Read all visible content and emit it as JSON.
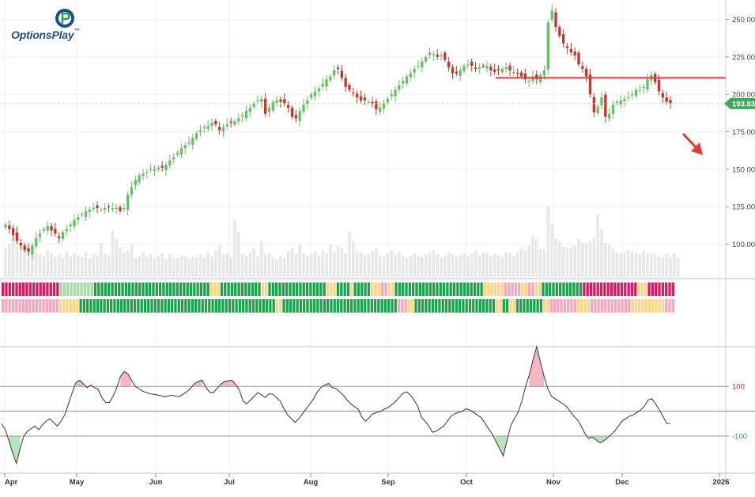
{
  "brand": {
    "name": "OptionsPlay",
    "tm": "™",
    "colors": {
      "blue": "#1f4e8c",
      "green": "#2e9e4f"
    }
  },
  "current_price_label": "193.83",
  "colors": {
    "up": "#6abf69",
    "down": "#c0392b",
    "volume": "#e8e8e8",
    "resistance": "#e53935",
    "arrow": "#e53935",
    "cci_line": "#444444",
    "cci_pos_fill": "#f2b8c6",
    "cci_neg_fill": "#b9e2bf",
    "band_green": "#1aa34a",
    "band_red": "#d81b60",
    "band_pink": "#f4a6be",
    "band_yellow": "#ffd580",
    "band_lightgreen": "#a8d8a8",
    "price_dash": "#c9d6a3",
    "badge": "#3daa5a"
  },
  "chart_data": [
    {
      "type": "candlestick",
      "title": "",
      "y_ticks": [
        250.0,
        225.0,
        200.0,
        175.0,
        150.0,
        125.0,
        100.0
      ],
      "y_tick_labels": [
        "250.00",
        "225.00",
        "200.00",
        "175.00",
        "150.00",
        "125.00",
        "100.00"
      ],
      "ylim": [
        78,
        263
      ],
      "x_labels": [
        "Apr",
        "May",
        "Jun",
        "Jul",
        "Aug",
        "Sep",
        "Oct",
        "Nov",
        "Dec",
        "2026"
      ],
      "last_close": 193.83,
      "resistance_level": 211,
      "trend_arrow": "down",
      "series": [
        {
          "closes": [
            113,
            110,
            106,
            102,
            99,
            96,
            95,
            99,
            104,
            107,
            110,
            112,
            109,
            107,
            104,
            108,
            110,
            113,
            116,
            118,
            120,
            122,
            123,
            124,
            124,
            123,
            124,
            125,
            124,
            124,
            122,
            124,
            133,
            138,
            143,
            146,
            147,
            148,
            150,
            150,
            151,
            151,
            153,
            156,
            158,
            161,
            164,
            166,
            168,
            171,
            174,
            176,
            178,
            179,
            181,
            180,
            176,
            178,
            180,
            181,
            182,
            184,
            186,
            189,
            191,
            194,
            196,
            197,
            187,
            191,
            195,
            196,
            195,
            194,
            191,
            185,
            184,
            189,
            193,
            196,
            200,
            202,
            204,
            207,
            210,
            212,
            216,
            217,
            211,
            205,
            203,
            201,
            198,
            196,
            196,
            195,
            194,
            190,
            191,
            194,
            197,
            200,
            203,
            206,
            209,
            212,
            214,
            217,
            219,
            222,
            225,
            228,
            227,
            225,
            226,
            223,
            218,
            214,
            214,
            216,
            219,
            220,
            219,
            217,
            218,
            219,
            219,
            216,
            215,
            216,
            217,
            218,
            216,
            215,
            214,
            212,
            210,
            209,
            212,
            210,
            213,
            216,
            248,
            256,
            245,
            239,
            234,
            231,
            228,
            226,
            220,
            217,
            212,
            200,
            188,
            192,
            198,
            185,
            187,
            193,
            195,
            196,
            197,
            198,
            200,
            203,
            203,
            205,
            210,
            213,
            208,
            202,
            198,
            195,
            193.83
          ]
        }
      ],
      "volume_relative": [
        0.3,
        0.35,
        0.4,
        0.33,
        0.28,
        0.38,
        0.3,
        0.32,
        0.26,
        0.24,
        0.22,
        0.28,
        0.25,
        0.21,
        0.24,
        0.2,
        0.27,
        0.22,
        0.25,
        0.23,
        0.21,
        0.26,
        0.2,
        0.24,
        0.22,
        0.36,
        0.25,
        0.23,
        0.49,
        0.4,
        0.31,
        0.26,
        0.28,
        0.35,
        0.2,
        0.22,
        0.26,
        0.21,
        0.24,
        0.2,
        0.22,
        0.25,
        0.19,
        0.24,
        0.21,
        0.2,
        0.23,
        0.22,
        0.19,
        0.22,
        0.21,
        0.24,
        0.2,
        0.26,
        0.22,
        0.28,
        0.33,
        0.24,
        0.25,
        0.21,
        0.6,
        0.48,
        0.24,
        0.22,
        0.26,
        0.3,
        0.22,
        0.38,
        0.24,
        0.25,
        0.21,
        0.19,
        0.22,
        0.2,
        0.27,
        0.3,
        0.24,
        0.35,
        0.25,
        0.22,
        0.24,
        0.27,
        0.23,
        0.28,
        0.25,
        0.34,
        0.26,
        0.33,
        0.3,
        0.25,
        0.48,
        0.38,
        0.28,
        0.26,
        0.23,
        0.24,
        0.27,
        0.3,
        0.23,
        0.21,
        0.25,
        0.28,
        0.24,
        0.26,
        0.22,
        0.2,
        0.23,
        0.25,
        0.22,
        0.21,
        0.24,
        0.26,
        0.28,
        0.24,
        0.2,
        0.22,
        0.26,
        0.24,
        0.21,
        0.23,
        0.25,
        0.22,
        0.24,
        0.28,
        0.23,
        0.26,
        0.25,
        0.22,
        0.24,
        0.23,
        0.21,
        0.26,
        0.25,
        0.22,
        0.26,
        0.3,
        0.28,
        0.33,
        0.44,
        0.4,
        0.3,
        0.29,
        0.75,
        0.56,
        0.4,
        0.37,
        0.32,
        0.3,
        0.31,
        0.33,
        0.4,
        0.36,
        0.36,
        0.38,
        0.42,
        0.66,
        0.5,
        0.36,
        0.35,
        0.3,
        0.26,
        0.25,
        0.26,
        0.28,
        0.27,
        0.25,
        0.24,
        0.28,
        0.25,
        0.25,
        0.24,
        0.22,
        0.21,
        0.24,
        0.22,
        0.25,
        0.2
      ]
    },
    {
      "type": "heatmap",
      "rows": 2,
      "segments_row1": [
        [
          "red",
          17
        ],
        [
          "lightgreen",
          10
        ],
        [
          "green",
          34
        ],
        [
          "yellow",
          3
        ],
        [
          "green",
          12
        ],
        [
          "yellow",
          2
        ],
        [
          "green",
          17
        ],
        [
          "yellow",
          3
        ],
        [
          "green",
          4
        ],
        [
          "yellow",
          1
        ],
        [
          "green",
          5
        ],
        [
          "yellow",
          3
        ],
        [
          "pink",
          2
        ],
        [
          "yellow",
          2
        ],
        [
          "green",
          26
        ],
        [
          "yellow",
          3
        ],
        [
          "yellow",
          3
        ],
        [
          "pink",
          5
        ],
        [
          "yellow",
          2
        ],
        [
          "pink",
          2
        ],
        [
          "yellow",
          2
        ],
        [
          "green",
          12
        ],
        [
          "red",
          16
        ],
        [
          "yellow",
          3
        ],
        [
          "red",
          8
        ]
      ],
      "segments_row2": [
        [
          "pink",
          17
        ],
        [
          "yellow",
          6
        ],
        [
          "green",
          58
        ],
        [
          "yellow",
          2
        ],
        [
          "green",
          34
        ],
        [
          "pink",
          3
        ],
        [
          "yellow",
          2
        ],
        [
          "green",
          24
        ],
        [
          "yellow",
          2
        ],
        [
          "green",
          2
        ],
        [
          "yellow",
          2
        ],
        [
          "green",
          8
        ],
        [
          "yellow",
          2
        ],
        [
          "pink",
          8
        ],
        [
          "yellow",
          4
        ],
        [
          "pink",
          12
        ],
        [
          "yellow",
          10
        ],
        [
          "pink",
          3
        ]
      ]
    },
    {
      "type": "line",
      "title": "",
      "y_ticks": [
        100,
        -100
      ],
      "y_tick_labels": [
        "100",
        "-100"
      ],
      "ylim": [
        -250,
        260
      ],
      "values": [
        -50,
        -75,
        -120,
        -170,
        -210,
        -150,
        -100,
        -80,
        -70,
        -60,
        -75,
        -55,
        -40,
        -30,
        -45,
        -60,
        -40,
        -15,
        30,
        75,
        115,
        125,
        110,
        95,
        105,
        95,
        88,
        55,
        35,
        35,
        60,
        95,
        140,
        160,
        150,
        125,
        100,
        90,
        80,
        75,
        70,
        68,
        65,
        62,
        58,
        62,
        64,
        60,
        60,
        70,
        80,
        95,
        112,
        120,
        125,
        96,
        76,
        74,
        92,
        108,
        120,
        122,
        125,
        108,
        85,
        40,
        30,
        45,
        60,
        75,
        65,
        55,
        70,
        68,
        55,
        40,
        10,
        -15,
        -30,
        -45,
        -30,
        -10,
        10,
        30,
        50,
        78,
        96,
        105,
        112,
        95,
        92,
        78,
        64,
        45,
        30,
        18,
        8,
        -25,
        -40,
        -25,
        -10,
        -5,
        0,
        8,
        14,
        26,
        39,
        55,
        72,
        78,
        65,
        45,
        20,
        -25,
        -40,
        -60,
        -85,
        -80,
        -70,
        -60,
        -40,
        -20,
        -10,
        -5,
        0,
        10,
        5,
        -5,
        -15,
        -25,
        -45,
        -70,
        -90,
        -120,
        -150,
        -180,
        -120,
        -60,
        -30,
        -5,
        40,
        98,
        145,
        205,
        260,
        200,
        140,
        90,
        60,
        50,
        40,
        30,
        20,
        0,
        -20,
        -35,
        -60,
        -90,
        -110,
        -105,
        -115,
        -128,
        -120,
        -108,
        -95,
        -80,
        -60,
        -40,
        -30,
        -20,
        -15,
        -5,
        5,
        20,
        45,
        50,
        30,
        5,
        -20,
        -50,
        -50
      ]
    }
  ]
}
